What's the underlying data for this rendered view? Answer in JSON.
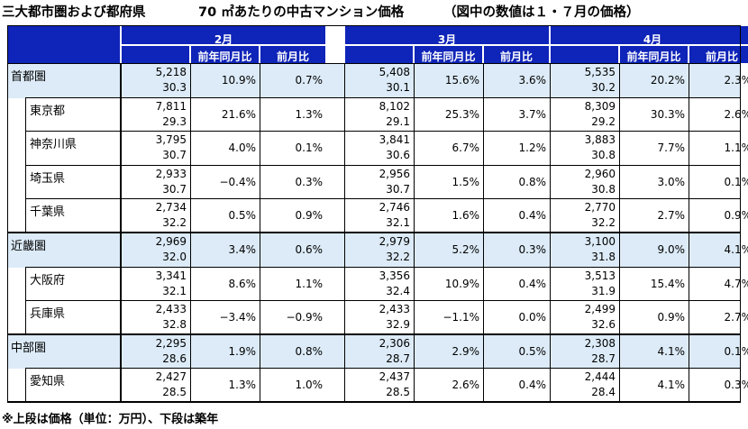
{
  "title": {
    "part1": "三大都市圏および都府県",
    "part2": "70 ㎡あたりの中古マンション価格",
    "part3": "（図中の数値は１・７月の価格）"
  },
  "footnote": "※上段は価格（単位：万円）、下段は築年",
  "months": [
    "2月",
    "3月",
    "4月"
  ],
  "subheaders": [
    "前年同月比",
    "前月比"
  ],
  "rows": [
    {
      "name": "首都圏",
      "level": "region",
      "data": [
        {
          "price": "5,218",
          "age": "30.3",
          "yoy": "10.9%",
          "mom": "0.7%"
        },
        {
          "price": "5,408",
          "age": "30.1",
          "yoy": "15.6%",
          "mom": "3.6%"
        },
        {
          "price": "5,535",
          "age": "30.2",
          "yoy": "20.2%",
          "mom": "2.3%"
        }
      ]
    },
    {
      "name": "東京都",
      "level": "pref",
      "data": [
        {
          "price": "7,811",
          "age": "29.3",
          "yoy": "21.6%",
          "mom": "1.3%"
        },
        {
          "price": "8,102",
          "age": "29.1",
          "yoy": "25.3%",
          "mom": "3.7%"
        },
        {
          "price": "8,309",
          "age": "29.2",
          "yoy": "30.3%",
          "mom": "2.6%"
        }
      ]
    },
    {
      "name": "神奈川県",
      "level": "pref",
      "data": [
        {
          "price": "3,795",
          "age": "30.7",
          "yoy": "4.0%",
          "mom": "0.1%"
        },
        {
          "price": "3,841",
          "age": "30.6",
          "yoy": "6.7%",
          "mom": "1.2%"
        },
        {
          "price": "3,883",
          "age": "30.8",
          "yoy": "7.7%",
          "mom": "1.1%"
        }
      ]
    },
    {
      "name": "埼玉県",
      "level": "pref",
      "data": [
        {
          "price": "2,933",
          "age": "30.7",
          "yoy": "−0.4%",
          "mom": "0.3%"
        },
        {
          "price": "2,956",
          "age": "30.7",
          "yoy": "1.5%",
          "mom": "0.8%"
        },
        {
          "price": "2,960",
          "age": "30.8",
          "yoy": "3.0%",
          "mom": "0.1%"
        }
      ]
    },
    {
      "name": "千葉県",
      "level": "pref",
      "data": [
        {
          "price": "2,734",
          "age": "32.2",
          "yoy": "0.5%",
          "mom": "0.9%"
        },
        {
          "price": "2,746",
          "age": "32.1",
          "yoy": "1.6%",
          "mom": "0.4%"
        },
        {
          "price": "2,770",
          "age": "32.2",
          "yoy": "2.7%",
          "mom": "0.9%"
        }
      ]
    },
    {
      "name": "近畿圏",
      "level": "region",
      "data": [
        {
          "price": "2,969",
          "age": "32.0",
          "yoy": "3.4%",
          "mom": "0.6%"
        },
        {
          "price": "2,979",
          "age": "32.2",
          "yoy": "5.2%",
          "mom": "0.3%"
        },
        {
          "price": "3,100",
          "age": "31.8",
          "yoy": "9.0%",
          "mom": "4.1%"
        }
      ]
    },
    {
      "name": "大阪府",
      "level": "pref",
      "data": [
        {
          "price": "3,341",
          "age": "32.1",
          "yoy": "8.6%",
          "mom": "1.1%"
        },
        {
          "price": "3,356",
          "age": "32.4",
          "yoy": "10.9%",
          "mom": "0.4%"
        },
        {
          "price": "3,513",
          "age": "31.9",
          "yoy": "15.4%",
          "mom": "4.7%"
        }
      ]
    },
    {
      "name": "兵庫県",
      "level": "pref",
      "data": [
        {
          "price": "2,433",
          "age": "32.8",
          "yoy": "−3.4%",
          "mom": "−0.9%"
        },
        {
          "price": "2,433",
          "age": "32.9",
          "yoy": "−1.1%",
          "mom": "0.0%"
        },
        {
          "price": "2,499",
          "age": "32.6",
          "yoy": "0.9%",
          "mom": "2.7%"
        }
      ]
    },
    {
      "name": "中部圏",
      "level": "region",
      "data": [
        {
          "price": "2,295",
          "age": "28.6",
          "yoy": "1.9%",
          "mom": "0.8%"
        },
        {
          "price": "2,306",
          "age": "28.7",
          "yoy": "2.9%",
          "mom": "0.5%"
        },
        {
          "price": "2,308",
          "age": "28.7",
          "yoy": "4.1%",
          "mom": "0.1%"
        }
      ]
    },
    {
      "name": "愛知県",
      "level": "pref",
      "data": [
        {
          "price": "2,427",
          "age": "28.5",
          "yoy": "1.3%",
          "mom": "1.0%"
        },
        {
          "price": "2,437",
          "age": "28.5",
          "yoy": "2.6%",
          "mom": "0.4%"
        },
        {
          "price": "2,444",
          "age": "28.4",
          "yoy": "4.1%",
          "mom": "0.3%"
        }
      ]
    }
  ]
}
